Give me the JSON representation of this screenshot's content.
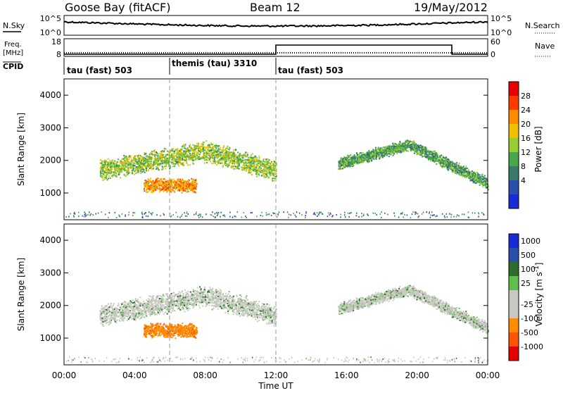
{
  "header": {
    "station": "Goose Bay (fitACF)",
    "beam": "Beam 12",
    "date": "19/May/2012"
  },
  "left_labels": {
    "nsky": "N.Sky",
    "freq_line1": "Freq.",
    "freq_line2": "[MHz]",
    "cpid": "CPID"
  },
  "right_labels": {
    "nsearch": "N.Search",
    "nave": "Nave"
  },
  "strip_ticks": {
    "noise_top": "10^5",
    "noise_bottom": "10^0",
    "freq_top": "18",
    "freq_bottom": "8",
    "nave_top": "60",
    "nave_bottom": "0"
  },
  "cpid_segments": [
    {
      "label": "tau (fast) 503",
      "start": 0,
      "end": 6
    },
    {
      "label": "themis (tau) 3310",
      "start": 6,
      "end": 12
    },
    {
      "label": "tau (fast) 503",
      "start": 12,
      "end": 24
    }
  ],
  "colors": {
    "power_scale": [
      "#1a2bd6",
      "#2a4fa8",
      "#3a7a6a",
      "#46a84a",
      "#9acd32",
      "#f0c000",
      "#ff8c00",
      "#ff3b00",
      "#e60000"
    ],
    "velocity_scale": [
      "#1a2bd6",
      "#2a4fa8",
      "#2e6b2e",
      "#5cc04a",
      "#c8c8c0",
      "#c8c8c0",
      "#ff8c00",
      "#ff5500",
      "#e60000"
    ],
    "ground_scatter": "#b0b0b0"
  },
  "chart_data": [
    {
      "type": "heatmap",
      "title": "",
      "xlabel": "Time UT",
      "ylabel": "Slant Range [km]",
      "x_ticks": [
        "00:00",
        "04:00",
        "08:00",
        "12:00",
        "16:00",
        "20:00",
        "00:00"
      ],
      "xlim_hours": [
        0,
        24
      ],
      "y_ticks": [
        "1000",
        "2000",
        "3000",
        "4000"
      ],
      "ylim_km": [
        180,
        4500
      ],
      "colorbar_label": "Power [dB]",
      "colorbar_ticks": [
        "4",
        "8",
        "12",
        "16",
        "20",
        "24",
        "28"
      ],
      "echo_bands": [
        {
          "t_start": 2.0,
          "t_end": 12.0,
          "range_center_start": 1700,
          "range_center_peak": 2300,
          "peak_time": 8.0,
          "range_center_end": 1700,
          "width_km": 450,
          "power_db": 14
        },
        {
          "t_start": 4.5,
          "t_end": 7.5,
          "range_center": 1250,
          "width_km": 300,
          "power_db": 22
        },
        {
          "t_start": 15.5,
          "t_end": 24.0,
          "range_center_start": 1900,
          "range_center_peak": 2500,
          "peak_time": 19.5,
          "range_center_end": 1300,
          "width_km": 250,
          "power_db": 10
        }
      ]
    },
    {
      "type": "heatmap",
      "title": "",
      "xlabel": "Time UT",
      "ylabel": "Slant Range [km]",
      "x_ticks": [
        "00:00",
        "04:00",
        "08:00",
        "12:00",
        "16:00",
        "20:00",
        "00:00"
      ],
      "xlim_hours": [
        0,
        24
      ],
      "y_ticks": [
        "1000",
        "2000",
        "3000",
        "4000"
      ],
      "ylim_km": [
        180,
        4500
      ],
      "colorbar_label": "Velocity [m s^-1]",
      "colorbar_ticks": [
        "1000",
        "500",
        "100",
        "25",
        "-25",
        "-100",
        "-500",
        "-1000"
      ],
      "echo_bands": [
        {
          "t_start": 2.0,
          "t_end": 12.0,
          "range_center_start": 1700,
          "range_center_peak": 2300,
          "peak_time": 8.0,
          "range_center_end": 1700,
          "width_km": 450,
          "velocity_ms": 0
        },
        {
          "t_start": 4.5,
          "t_end": 7.5,
          "range_center": 1250,
          "width_km": 300,
          "velocity_ms": -200
        },
        {
          "t_start": 15.5,
          "t_end": 24.0,
          "range_center_start": 1900,
          "range_center_peak": 2500,
          "peak_time": 19.5,
          "range_center_end": 1300,
          "width_km": 250,
          "velocity_ms": 0
        }
      ]
    }
  ],
  "axis_title": "Time UT"
}
